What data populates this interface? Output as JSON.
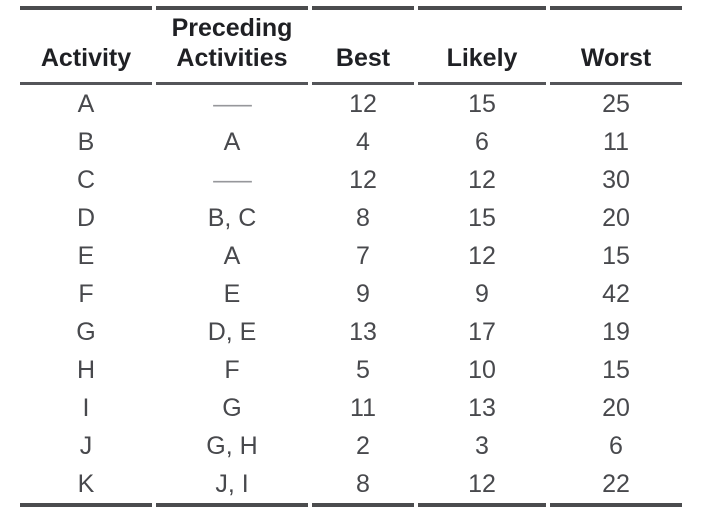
{
  "table": {
    "columns": [
      "Activity",
      "Preceding Activities",
      "Best",
      "Likely",
      "Worst"
    ],
    "rows": [
      [
        "A",
        "—",
        "12",
        "15",
        "25"
      ],
      [
        "B",
        "A",
        "4",
        "6",
        "11"
      ],
      [
        "C",
        "—",
        "12",
        "12",
        "30"
      ],
      [
        "D",
        "B, C",
        "8",
        "15",
        "20"
      ],
      [
        "E",
        "A",
        "7",
        "12",
        "15"
      ],
      [
        "F",
        "E",
        "9",
        "9",
        "42"
      ],
      [
        "G",
        "D, E",
        "13",
        "17",
        "19"
      ],
      [
        "H",
        "F",
        "5",
        "10",
        "15"
      ],
      [
        "I",
        "G",
        "11",
        "13",
        "20"
      ],
      [
        "J",
        "G, H",
        "2",
        "3",
        "6"
      ],
      [
        "K",
        "J, I",
        "8",
        "12",
        "22"
      ]
    ],
    "em_dash_meaning": "—"
  },
  "colors": {
    "background": "#FFFFFF",
    "rule_thick": "#4B4C4E",
    "rule_header_separator": "#545559",
    "header_text": "#1F2024",
    "body_text": "#48494D",
    "dash_text": "#96979B"
  }
}
